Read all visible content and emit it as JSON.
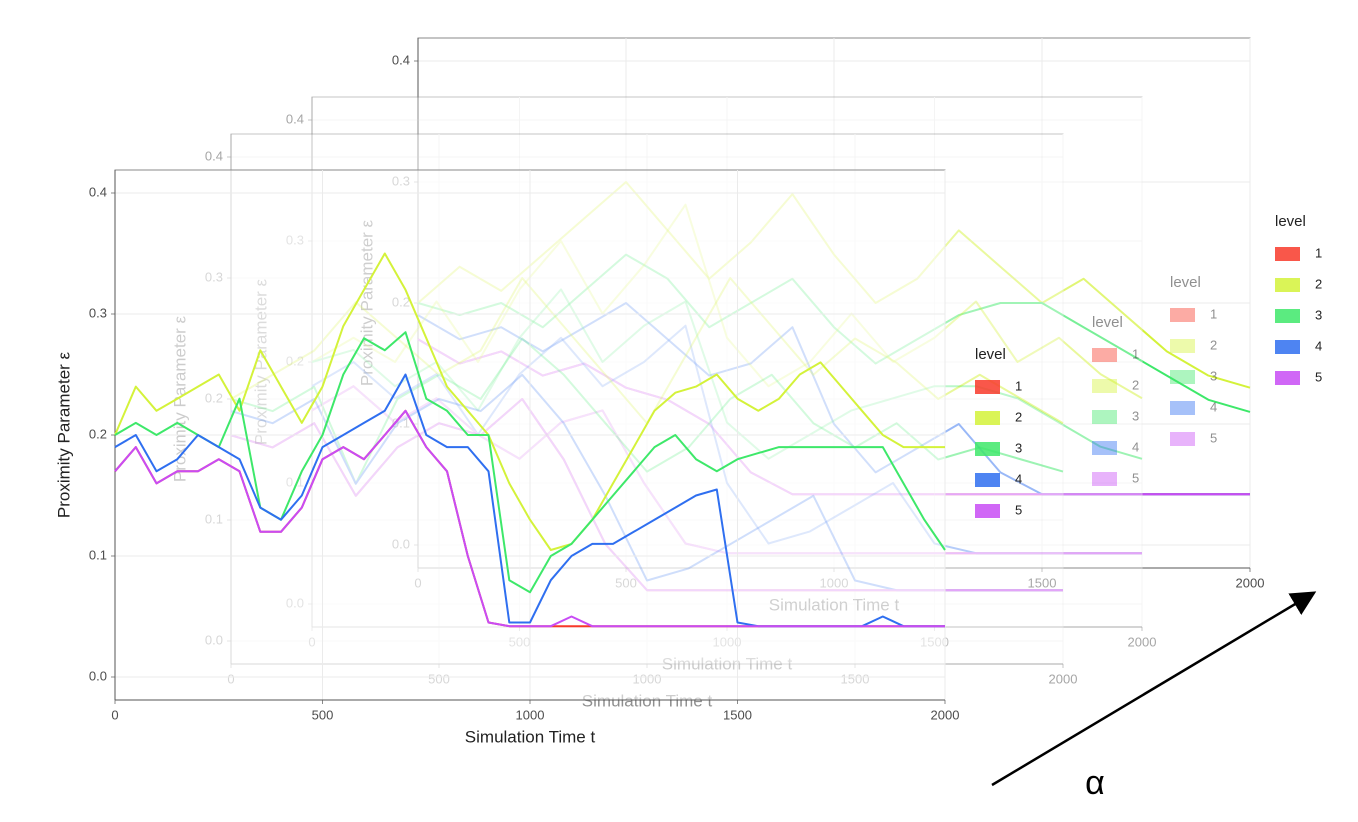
{
  "annotation": "α",
  "chart_data": [
    {
      "type": "line",
      "xlabel": "Simulation Time t",
      "ylabel": "Proximity Parameter ε",
      "legend_title": "level",
      "xlim": [
        0,
        2000
      ],
      "ylim": [
        0,
        0.4
      ],
      "xticks": [
        0,
        500,
        1000,
        1500,
        2000
      ],
      "yticks": [
        {
          "value": 0,
          "label": "0.0"
        },
        0.1,
        0.2,
        0.3,
        0.4
      ],
      "grid": true,
      "x": [
        0,
        50,
        100,
        150,
        200,
        250,
        300,
        350,
        400,
        450,
        500,
        550,
        600,
        650,
        700,
        750,
        800,
        850,
        900,
        950,
        1000,
        1050,
        1100,
        1150,
        1200,
        1250,
        1300,
        1350,
        1400,
        1450,
        1500,
        1550,
        1600,
        1650,
        1700,
        1750,
        1800,
        1850,
        1900,
        1950,
        2000
      ],
      "series": [
        {
          "name": "1",
          "color": "#f8392a",
          "values": [
            0.17,
            0.19,
            0.16,
            0.17,
            0.17,
            0.18,
            0.17,
            0.12,
            0.12,
            0.14,
            0.18,
            0.19,
            0.18,
            0.2,
            0.22,
            0.19,
            0.17,
            0.1,
            0.045,
            0.042,
            0.042,
            0.042,
            0.042,
            0.042,
            0.042,
            0.042,
            0.042,
            0.042,
            0.042,
            0.042,
            0.042,
            0.042,
            0.042,
            0.042,
            0.042,
            0.042,
            0.042,
            0.042,
            0.042,
            0.042,
            0.042
          ]
        },
        {
          "name": "2",
          "color": "#d4f23a",
          "values": [
            0.2,
            0.24,
            0.22,
            0.23,
            0.24,
            0.25,
            0.22,
            0.27,
            0.24,
            0.21,
            0.24,
            0.29,
            0.32,
            0.35,
            0.32,
            0.28,
            0.24,
            0.22,
            0.2,
            0.16,
            0.13,
            0.105,
            0.11,
            0.13,
            0.16,
            0.19,
            0.22,
            0.235,
            0.24,
            0.25,
            0.23,
            0.22,
            0.23,
            0.25,
            0.26,
            0.24,
            0.22,
            0.2,
            0.19,
            0.19,
            0.19
          ]
        },
        {
          "name": "3",
          "color": "#3ee86a",
          "values": [
            0.2,
            0.21,
            0.2,
            0.21,
            0.2,
            0.19,
            0.23,
            0.14,
            0.13,
            0.17,
            0.2,
            0.25,
            0.28,
            0.27,
            0.285,
            0.23,
            0.22,
            0.2,
            0.2,
            0.08,
            0.07,
            0.1,
            0.11,
            0.13,
            0.15,
            0.17,
            0.19,
            0.2,
            0.18,
            0.17,
            0.18,
            0.185,
            0.19,
            0.19,
            0.19,
            0.19,
            0.19,
            0.19,
            0.16,
            0.13,
            0.105
          ]
        },
        {
          "name": "4",
          "color": "#2f6ff0",
          "values": [
            0.19,
            0.2,
            0.17,
            0.18,
            0.2,
            0.19,
            0.18,
            0.14,
            0.13,
            0.15,
            0.19,
            0.2,
            0.21,
            0.22,
            0.25,
            0.2,
            0.19,
            0.19,
            0.17,
            0.045,
            0.045,
            0.08,
            0.1,
            0.11,
            0.11,
            0.12,
            0.13,
            0.14,
            0.15,
            0.155,
            0.045,
            0.042,
            0.042,
            0.042,
            0.042,
            0.042,
            0.042,
            0.05,
            0.042,
            0.042,
            0.042
          ]
        },
        {
          "name": "5",
          "color": "#c84cf5",
          "values": [
            0.17,
            0.19,
            0.16,
            0.17,
            0.17,
            0.18,
            0.17,
            0.12,
            0.12,
            0.14,
            0.18,
            0.19,
            0.18,
            0.2,
            0.22,
            0.19,
            0.17,
            0.1,
            0.045,
            0.042,
            0.042,
            0.042,
            0.05,
            0.042,
            0.042,
            0.042,
            0.042,
            0.042,
            0.042,
            0.042,
            0.042,
            0.042,
            0.042,
            0.042,
            0.042,
            0.042,
            0.042,
            0.042,
            0.042,
            0.042,
            0.042
          ]
        }
      ]
    },
    {
      "type": "line",
      "xlabel": "Simulation Time t",
      "ylabel": "Proximity Parameter ε",
      "legend_title": "level",
      "xlim": [
        0,
        2000
      ],
      "ylim": [
        0,
        0.4
      ],
      "xticks": [
        0,
        500,
        1000,
        1500,
        2000
      ],
      "yticks": [
        {
          "value": 0,
          "label": "0.0"
        },
        0.1,
        0.2,
        0.3,
        0.4
      ],
      "grid": true,
      "x": [
        0,
        100,
        200,
        300,
        400,
        500,
        600,
        700,
        800,
        900,
        1000,
        1100,
        1200,
        1300,
        1400,
        1500,
        1600,
        1700,
        1800,
        1900,
        2000
      ],
      "series": [
        {
          "name": "1",
          "color": "#f8392a",
          "values": [
            0.17,
            0.16,
            0.18,
            0.12,
            0.16,
            0.18,
            0.17,
            0.2,
            0.15,
            0.08,
            0.042,
            0.042,
            0.042,
            0.042,
            0.042,
            0.042,
            0.042,
            0.042,
            0.042,
            0.042,
            0.042
          ]
        },
        {
          "name": "2",
          "color": "#d4f23a",
          "values": [
            0.2,
            0.22,
            0.24,
            0.28,
            0.25,
            0.22,
            0.24,
            0.3,
            0.26,
            0.22,
            0.18,
            0.24,
            0.3,
            0.26,
            0.22,
            0.25,
            0.23,
            0.2,
            0.22,
            0.2,
            0.18
          ]
        },
        {
          "name": "3",
          "color": "#3ee86a",
          "values": [
            0.2,
            0.19,
            0.21,
            0.13,
            0.2,
            0.22,
            0.2,
            0.25,
            0.22,
            0.18,
            0.14,
            0.16,
            0.2,
            0.22,
            0.18,
            0.16,
            0.18,
            0.15,
            0.16,
            0.15,
            0.14
          ]
        },
        {
          "name": "4",
          "color": "#2f6ff0",
          "values": [
            0.19,
            0.18,
            0.2,
            0.13,
            0.18,
            0.2,
            0.19,
            0.22,
            0.18,
            0.12,
            0.05,
            0.06,
            0.08,
            0.1,
            0.12,
            0.05,
            0.042,
            0.042,
            0.042,
            0.042,
            0.042
          ]
        },
        {
          "name": "5",
          "color": "#c84cf5",
          "values": [
            0.17,
            0.16,
            0.18,
            0.12,
            0.16,
            0.18,
            0.17,
            0.2,
            0.15,
            0.08,
            0.042,
            0.042,
            0.042,
            0.042,
            0.042,
            0.042,
            0.042,
            0.042,
            0.042,
            0.042,
            0.042
          ]
        }
      ]
    },
    {
      "type": "line",
      "xlabel": "Simulation Time t",
      "ylabel": "Proximity Parameter ε",
      "legend_title": "level",
      "xlim": [
        0,
        2000
      ],
      "ylim": [
        0,
        0.4
      ],
      "xticks": [
        0,
        500,
        1000,
        1500,
        2000
      ],
      "yticks": [
        {
          "value": 0,
          "label": "0.0"
        },
        0.1,
        0.2,
        0.3,
        0.4
      ],
      "grid": true,
      "x": [
        0,
        100,
        200,
        300,
        400,
        500,
        600,
        700,
        800,
        900,
        1000,
        1100,
        1200,
        1300,
        1400,
        1500,
        1600,
        1700,
        1800,
        1900,
        2000
      ],
      "series": [
        {
          "name": "1",
          "color": "#f8392a",
          "values": [
            0.16,
            0.18,
            0.15,
            0.17,
            0.14,
            0.12,
            0.15,
            0.16,
            0.1,
            0.05,
            0.042,
            0.042,
            0.042,
            0.042,
            0.042,
            0.042,
            0.042,
            0.042,
            0.042,
            0.042,
            0.042
          ]
        },
        {
          "name": "2",
          "color": "#d4f23a",
          "values": [
            0.2,
            0.22,
            0.2,
            0.25,
            0.2,
            0.26,
            0.3,
            0.24,
            0.28,
            0.33,
            0.22,
            0.18,
            0.2,
            0.24,
            0.2,
            0.22,
            0.25,
            0.2,
            0.22,
            0.19,
            0.17
          ]
        },
        {
          "name": "3",
          "color": "#3ee86a",
          "values": [
            0.2,
            0.21,
            0.18,
            0.2,
            0.16,
            0.22,
            0.26,
            0.2,
            0.23,
            0.25,
            0.15,
            0.12,
            0.14,
            0.16,
            0.17,
            0.18,
            0.18,
            0.17,
            0.15,
            0.13,
            0.12
          ]
        },
        {
          "name": "4",
          "color": "#2f6ff0",
          "values": [
            0.18,
            0.2,
            0.17,
            0.19,
            0.14,
            0.19,
            0.22,
            0.18,
            0.2,
            0.23,
            0.1,
            0.05,
            0.06,
            0.08,
            0.1,
            0.05,
            0.042,
            0.042,
            0.042,
            0.042,
            0.042
          ]
        },
        {
          "name": "5",
          "color": "#c84cf5",
          "values": [
            0.16,
            0.18,
            0.15,
            0.17,
            0.14,
            0.12,
            0.15,
            0.16,
            0.1,
            0.05,
            0.042,
            0.042,
            0.042,
            0.042,
            0.042,
            0.042,
            0.042,
            0.042,
            0.042,
            0.042,
            0.042
          ]
        }
      ]
    },
    {
      "type": "line",
      "xlabel": "Simulation Time t",
      "ylabel": "Proximity Parameter ε",
      "legend_title": "level",
      "xlim": [
        0,
        2000
      ],
      "ylim": [
        0,
        0.4
      ],
      "xticks": [
        0,
        500,
        1000,
        1500,
        2000
      ],
      "yticks": [
        {
          "value": 0,
          "label": "0.0"
        },
        0.1,
        0.2,
        0.3,
        0.4
      ],
      "grid": true,
      "x": [
        0,
        100,
        200,
        300,
        400,
        500,
        600,
        700,
        800,
        900,
        1000,
        1100,
        1200,
        1300,
        1400,
        1500,
        1600,
        1700,
        1800,
        1900,
        2000
      ],
      "series": [
        {
          "name": "1",
          "color": "#f8392a",
          "values": [
            0.17,
            0.15,
            0.16,
            0.14,
            0.15,
            0.13,
            0.12,
            0.1,
            0.06,
            0.042,
            0.042,
            0.042,
            0.042,
            0.042,
            0.042,
            0.042,
            0.042,
            0.042,
            0.042,
            0.042,
            0.042
          ]
        },
        {
          "name": "2",
          "color": "#d4f23a",
          "values": [
            0.2,
            0.23,
            0.21,
            0.24,
            0.27,
            0.3,
            0.26,
            0.22,
            0.25,
            0.29,
            0.24,
            0.2,
            0.22,
            0.26,
            0.23,
            0.2,
            0.22,
            0.19,
            0.16,
            0.14,
            0.13
          ]
        },
        {
          "name": "3",
          "color": "#3ee86a",
          "values": [
            0.2,
            0.19,
            0.2,
            0.18,
            0.21,
            0.24,
            0.22,
            0.18,
            0.2,
            0.22,
            0.18,
            0.15,
            0.17,
            0.19,
            0.2,
            0.2,
            0.18,
            0.16,
            0.14,
            0.12,
            0.11
          ]
        },
        {
          "name": "4",
          "color": "#2f6ff0",
          "values": [
            0.19,
            0.17,
            0.18,
            0.16,
            0.18,
            0.2,
            0.17,
            0.14,
            0.15,
            0.18,
            0.1,
            0.06,
            0.08,
            0.1,
            0.06,
            0.042,
            0.042,
            0.042,
            0.042,
            0.042,
            0.042
          ]
        },
        {
          "name": "5",
          "color": "#c84cf5",
          "values": [
            0.17,
            0.15,
            0.16,
            0.14,
            0.15,
            0.13,
            0.12,
            0.1,
            0.06,
            0.042,
            0.042,
            0.042,
            0.042,
            0.042,
            0.042,
            0.042,
            0.042,
            0.042,
            0.042,
            0.042,
            0.042
          ]
        }
      ]
    }
  ]
}
